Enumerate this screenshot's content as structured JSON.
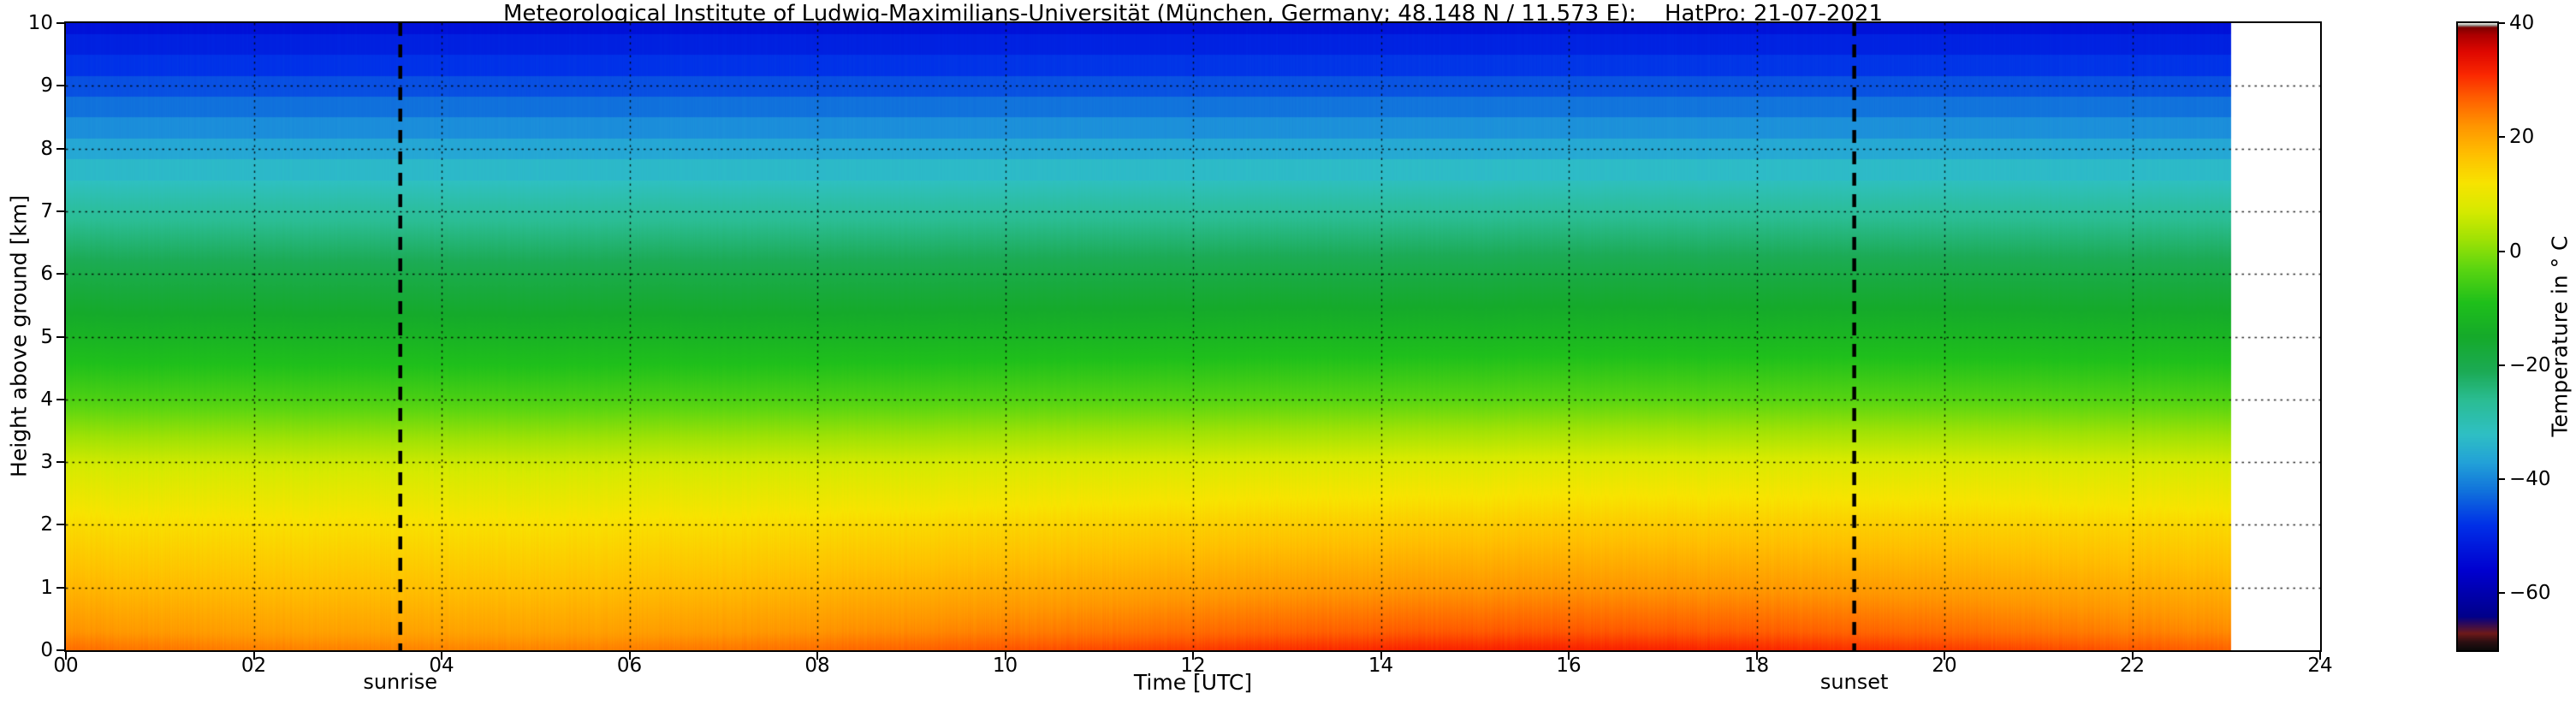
{
  "title": "Meteorological Institute of Ludwig-Maximilians-Universität (München, Germany; 48.148 N / 11.573 E):    HatPro: 21-07-2021",
  "plot": {
    "x_axis": {
      "label": "Time [UTC]",
      "min": 0,
      "max": 24,
      "ticks": [
        "00",
        "02",
        "04",
        "06",
        "08",
        "10",
        "12",
        "14",
        "16",
        "18",
        "20",
        "22",
        "24"
      ]
    },
    "y_axis": {
      "label": "Height above ground [km]",
      "min": 0,
      "max": 10,
      "ticks": [
        "0",
        "1",
        "2",
        "3",
        "4",
        "5",
        "6",
        "7",
        "8",
        "9",
        "10"
      ]
    },
    "annotations": [
      {
        "label": "sunrise",
        "time_utc": 3.56
      },
      {
        "label": "sunset",
        "time_utc": 19.04
      }
    ],
    "grid": {
      "style": "dotted",
      "x_step_hours": 2,
      "y_step_km": 1
    }
  },
  "colorbar": {
    "label": "Temperature in ° C",
    "min": -70,
    "max": 40,
    "ticks": [
      "40",
      "20",
      "0",
      "−20",
      "−40",
      "−60"
    ],
    "tick_values": [
      40,
      20,
      0,
      -20,
      -40,
      -60
    ],
    "stops": [
      {
        "v": -70,
        "c": "#0a0a0a"
      },
      {
        "v": -68.5,
        "c": "#2b0f12"
      },
      {
        "v": -67,
        "c": "#6e1a1a"
      },
      {
        "v": -64,
        "c": "#00008b"
      },
      {
        "v": -56,
        "c": "#0000d0"
      },
      {
        "v": -48,
        "c": "#0030e8"
      },
      {
        "v": -42,
        "c": "#1173dc"
      },
      {
        "v": -37,
        "c": "#23a2d8"
      },
      {
        "v": -32,
        "c": "#2fc0c4"
      },
      {
        "v": -26,
        "c": "#2bbd93"
      },
      {
        "v": -21,
        "c": "#1cab55"
      },
      {
        "v": -15,
        "c": "#15aa2b"
      },
      {
        "v": -9,
        "c": "#1fc01b"
      },
      {
        "v": -3,
        "c": "#5cd611"
      },
      {
        "v": 2,
        "c": "#9fe205"
      },
      {
        "v": 7,
        "c": "#d6ea00"
      },
      {
        "v": 12,
        "c": "#f8e400"
      },
      {
        "v": 17,
        "c": "#ffc000"
      },
      {
        "v": 22,
        "c": "#ff9600"
      },
      {
        "v": 27,
        "c": "#ff5e00"
      },
      {
        "v": 31,
        "c": "#fb2800"
      },
      {
        "v": 35,
        "c": "#e00800"
      },
      {
        "v": 38,
        "c": "#ad0000"
      },
      {
        "v": 39.3,
        "c": "#7c0000"
      },
      {
        "v": 39.7,
        "c": "#9a9a94"
      },
      {
        "v": 40,
        "c": "#e9e9e2"
      }
    ]
  },
  "chart_data": {
    "type": "heatmap",
    "title": "HatPro microwave radiometer temperature profile, 21-07-2021",
    "xlabel": "Time [UTC]",
    "ylabel": "Height above ground [km]",
    "zlabel": "Temperature in ° C",
    "x_hours": [
      0,
      1,
      2,
      3,
      4,
      5,
      6,
      7,
      8,
      9,
      10,
      11,
      12,
      13,
      14,
      15,
      16,
      17,
      18,
      19,
      20,
      21,
      22,
      23
    ],
    "y_km": [
      0,
      1,
      2,
      3,
      4,
      5,
      6,
      7,
      8,
      9,
      10
    ],
    "data_end_hour": 23.05,
    "sunrise_utc": 3.56,
    "sunset_utc": 19.04,
    "values_degC_rows_by_height": [
      [
        24.0,
        23.2,
        22.5,
        22.1,
        22.0,
        22.1,
        22.5,
        23.2,
        24.0,
        25.0,
        26.0,
        27.0,
        28.0,
        28.8,
        29.5,
        29.9,
        30.0,
        29.9,
        29.5,
        28.8,
        28.0,
        27.0,
        26.0,
        25.0
      ],
      [
        18.3,
        17.7,
        17.3,
        17.1,
        17.0,
        17.1,
        17.3,
        17.7,
        18.3,
        18.9,
        19.5,
        20.1,
        20.8,
        21.3,
        21.7,
        21.9,
        22.0,
        21.9,
        21.7,
        21.3,
        20.8,
        20.1,
        19.5,
        18.9
      ],
      [
        13.3,
        12.9,
        12.7,
        12.6,
        12.5,
        12.6,
        12.7,
        12.9,
        13.3,
        13.6,
        14.0,
        14.4,
        14.8,
        15.1,
        15.3,
        15.5,
        15.5,
        15.5,
        15.3,
        15.1,
        14.8,
        14.4,
        14.0,
        13.6
      ],
      [
        6.5,
        6.3,
        6.1,
        6.0,
        6.0,
        6.0,
        6.1,
        6.3,
        6.5,
        6.7,
        7.0,
        7.3,
        7.5,
        7.7,
        7.9,
        8.0,
        8.0,
        8.0,
        7.9,
        7.7,
        7.5,
        7.3,
        7.0,
        6.7
      ],
      [
        -4.4,
        -4.5,
        -4.6,
        -4.7,
        -4.7,
        -4.7,
        -4.6,
        -4.5,
        -4.4,
        -4.2,
        -4.0,
        -3.8,
        -3.7,
        -3.5,
        -3.4,
        -3.3,
        -3.3,
        -3.3,
        -3.4,
        -3.5,
        -3.7,
        -3.8,
        -4.0,
        -4.2
      ],
      [
        -12.3,
        -12.4,
        -12.4,
        -12.5,
        -12.5,
        -12.5,
        -12.4,
        -12.4,
        -12.3,
        -12.1,
        -12.0,
        -11.9,
        -11.8,
        -11.6,
        -11.6,
        -11.5,
        -11.5,
        -11.5,
        -11.6,
        -11.6,
        -11.8,
        -11.9,
        -12.0,
        -12.1
      ],
      [
        -19.2,
        -19.3,
        -19.3,
        -19.4,
        -19.4,
        -19.4,
        -19.3,
        -19.3,
        -19.2,
        -19.1,
        -19.0,
        -18.9,
        -18.8,
        -18.7,
        -18.7,
        -18.6,
        -18.6,
        -18.6,
        -18.7,
        -18.7,
        -18.8,
        -18.9,
        -19.0,
        -19.1
      ],
      [
        -27.2,
        -27.2,
        -27.3,
        -27.3,
        -27.3,
        -27.3,
        -27.3,
        -27.2,
        -27.2,
        -27.1,
        -27.0,
        -26.9,
        -26.9,
        -26.8,
        -26.7,
        -26.7,
        -26.7,
        -26.7,
        -26.7,
        -26.8,
        -26.9,
        -26.9,
        -27.0,
        -27.1
      ],
      [
        -36.1,
        -36.1,
        -36.2,
        -36.2,
        -36.2,
        -36.2,
        -36.2,
        -36.1,
        -36.1,
        -36.1,
        -36.0,
        -35.9,
        -35.9,
        -35.9,
        -35.8,
        -35.8,
        -35.8,
        -35.8,
        -35.8,
        -35.9,
        -35.9,
        -35.9,
        -36.0,
        -36.1
      ],
      [
        -45.1,
        -45.1,
        -45.2,
        -45.2,
        -45.2,
        -45.2,
        -45.2,
        -45.1,
        -45.1,
        -45.1,
        -45.0,
        -44.9,
        -44.9,
        -44.9,
        -44.8,
        -44.8,
        -44.8,
        -44.8,
        -44.8,
        -44.9,
        -44.9,
        -44.9,
        -45.0,
        -45.1
      ],
      [
        -53.1,
        -53.1,
        -53.2,
        -53.2,
        -53.2,
        -53.2,
        -53.2,
        -53.1,
        -53.1,
        -53.1,
        -53.0,
        -52.9,
        -52.9,
        -52.9,
        -52.8,
        -52.8,
        -52.8,
        -52.8,
        -52.8,
        -52.9,
        -52.9,
        -52.9,
        -53.0,
        -53.1
      ]
    ]
  }
}
